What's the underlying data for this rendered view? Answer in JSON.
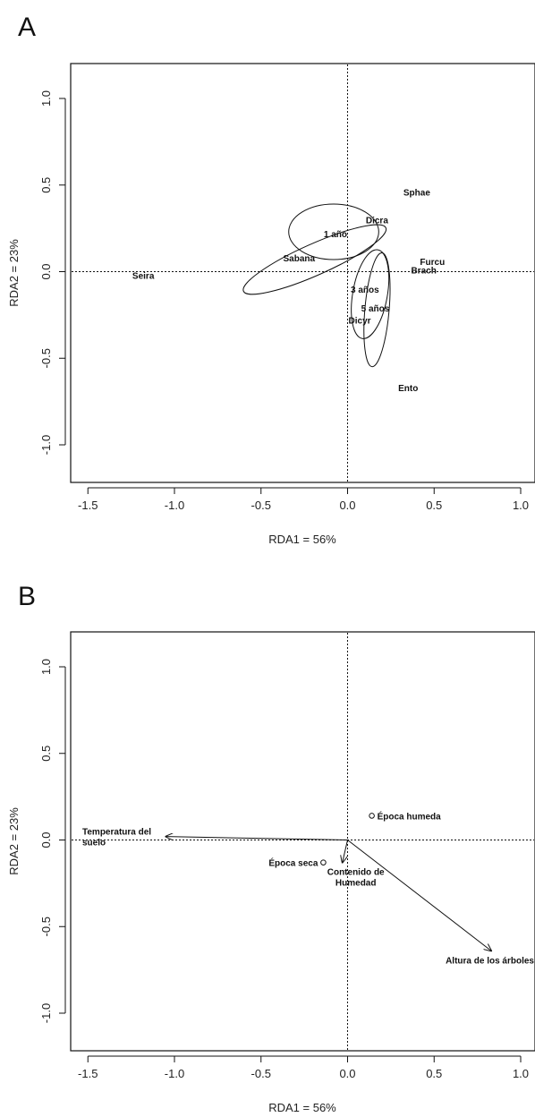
{
  "chart_data": [
    {
      "type": "scatter",
      "panel": "A",
      "xlabel": "RDA1 = 56%",
      "ylabel": "RDA2 = 23%",
      "xlim": [
        -1.6,
        1.05
      ],
      "ylim": [
        -1.2,
        1.2
      ],
      "xticks": [
        -1.5,
        -1.0,
        -0.5,
        0.0,
        0.5,
        1.0
      ],
      "yticks": [
        -1.0,
        -0.5,
        0.0,
        0.5,
        1.0
      ],
      "xtick_labels": [
        "-1.5",
        "-1.0",
        "-0.5",
        "0.0",
        "0.5",
        "1.0"
      ],
      "ytick_labels": [
        "-1.0",
        "-0.5",
        "0.0",
        "0.5",
        "1.0"
      ],
      "reference_lines": {
        "x": 0,
        "y": 0,
        "style": "dotted"
      },
      "points": [
        {
          "label": "Sphae",
          "x": 0.4,
          "y": 0.46
        },
        {
          "label": "Dicra",
          "x": 0.17,
          "y": 0.3
        },
        {
          "label": "1 año",
          "x": -0.07,
          "y": 0.22
        },
        {
          "label": "Sabana",
          "x": -0.28,
          "y": 0.08
        },
        {
          "label": "Furcu",
          "x": 0.49,
          "y": 0.06
        },
        {
          "label": "Brach",
          "x": 0.44,
          "y": 0.01
        },
        {
          "label": "Seira",
          "x": -1.18,
          "y": -0.02
        },
        {
          "label": "3 años",
          "x": 0.1,
          "y": -0.1
        },
        {
          "label": "5 años",
          "x": 0.16,
          "y": -0.21
        },
        {
          "label": "Dicyr",
          "x": 0.07,
          "y": -0.28
        },
        {
          "label": "Ento",
          "x": 0.35,
          "y": -0.67
        }
      ],
      "ellipses": [
        {
          "group": "1 año",
          "cx": -0.08,
          "cy": 0.23,
          "rx": 0.26,
          "ry": 0.16,
          "angle": 0
        },
        {
          "group": "Sabana",
          "cx": -0.19,
          "cy": 0.07,
          "rx": 0.45,
          "ry": 0.09,
          "angle": 24
        },
        {
          "group": "3 años",
          "cx": 0.13,
          "cy": -0.13,
          "rx": 0.1,
          "ry": 0.26,
          "angle": -10
        },
        {
          "group": "5 años",
          "cx": 0.17,
          "cy": -0.22,
          "rx": 0.07,
          "ry": 0.33,
          "angle": -5
        }
      ]
    },
    {
      "type": "scatter",
      "panel": "B",
      "xlabel": "RDA1 = 56%",
      "ylabel": "RDA2 = 23%",
      "xlim": [
        -1.6,
        1.05
      ],
      "ylim": [
        -1.2,
        1.2
      ],
      "xticks": [
        -1.5,
        -1.0,
        -0.5,
        0.0,
        0.5,
        1.0
      ],
      "yticks": [
        -1.0,
        -0.5,
        0.0,
        0.5,
        1.0
      ],
      "xtick_labels": [
        "-1.5",
        "-1.0",
        "-0.5",
        "0.0",
        "0.5",
        "1.0"
      ],
      "ytick_labels": [
        "-1.0",
        "-0.5",
        "0.0",
        "0.5",
        "1.0"
      ],
      "reference_lines": {
        "x": 0,
        "y": 0,
        "style": "dotted"
      },
      "arrows": [
        {
          "label_lines": [
            "Temperatura del",
            "suelo"
          ],
          "x": -1.05,
          "y": 0.02
        },
        {
          "label_lines": [
            "Contenido de",
            "Humedad"
          ],
          "x": -0.03,
          "y": -0.13
        },
        {
          "label_lines": [
            "Altura de los árboles"
          ],
          "x": 0.83,
          "y": -0.64
        }
      ],
      "points": [
        {
          "label": "Época humeda",
          "x": 0.14,
          "y": 0.14
        },
        {
          "label": "Época seca",
          "x": -0.14,
          "y": -0.13
        }
      ]
    }
  ]
}
